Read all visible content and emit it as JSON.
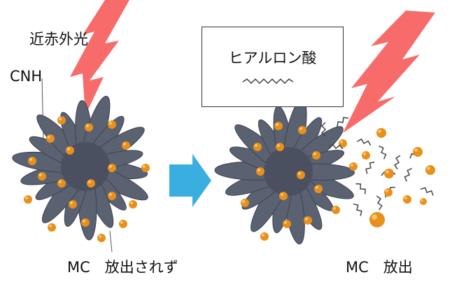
{
  "labels": {
    "near_infrared": "近赤外光",
    "cnh": "CNH",
    "hyaluronic_acid": "ヒアルロン酸",
    "mc_not_released": "MC　放出されず",
    "mc_released": "MC　放出"
  },
  "colors": {
    "lightning": "#f76b6b",
    "arrow": "#3aaee0",
    "sphere": "#e8901a",
    "nanohorn": "#5a6272"
  }
}
